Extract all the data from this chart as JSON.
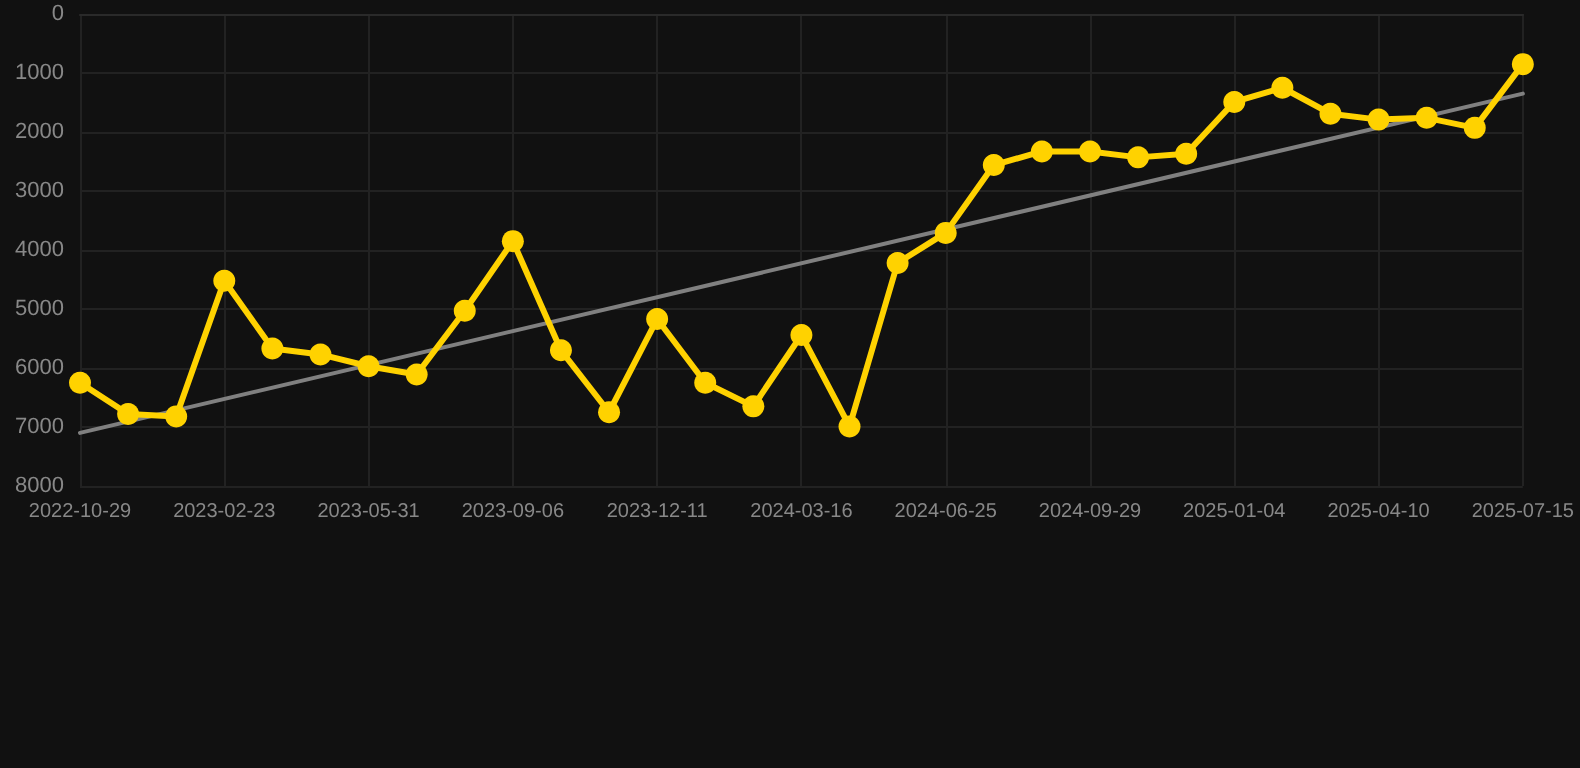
{
  "chart_data": {
    "type": "line",
    "categories": [
      "2022-10-29",
      null,
      null,
      "2023-02-23",
      null,
      null,
      "2023-05-31",
      null,
      null,
      "2023-09-06",
      null,
      null,
      "2023-12-11",
      null,
      null,
      "2024-03-16",
      null,
      null,
      "2024-06-25",
      null,
      null,
      "2024-09-29",
      null,
      null,
      "2025-01-04",
      null,
      null,
      "2025-04-10",
      null,
      null,
      "2025-07-15"
    ],
    "series": [
      {
        "color": "#ffd200",
        "values": [
          6250,
          6780,
          6820,
          4520,
          5670,
          5770,
          5970,
          6110,
          5030,
          3850,
          5700,
          6750,
          5170,
          6250,
          6650,
          5440,
          6990,
          4220,
          3710,
          2560,
          2330,
          2330,
          2430,
          2370,
          1490,
          1250,
          1690,
          1790,
          1760,
          1930,
          850
        ]
      },
      {
        "type": "line",
        "color": "#808080",
        "marker": "none",
        "values": [
          7100,
          null,
          null,
          null,
          null,
          null,
          null,
          null,
          null,
          null,
          null,
          null,
          null,
          null,
          null,
          null,
          null,
          null,
          null,
          null,
          null,
          null,
          null,
          null,
          null,
          null,
          null,
          null,
          null,
          null,
          1350
        ]
      }
    ],
    "ylim": [
      8000,
      0
    ],
    "yticks": [
      0,
      1000,
      2000,
      3000,
      4000,
      5000,
      6000,
      7000,
      8000
    ],
    "grid": true,
    "marker": "circle",
    "line_style": "solid"
  }
}
